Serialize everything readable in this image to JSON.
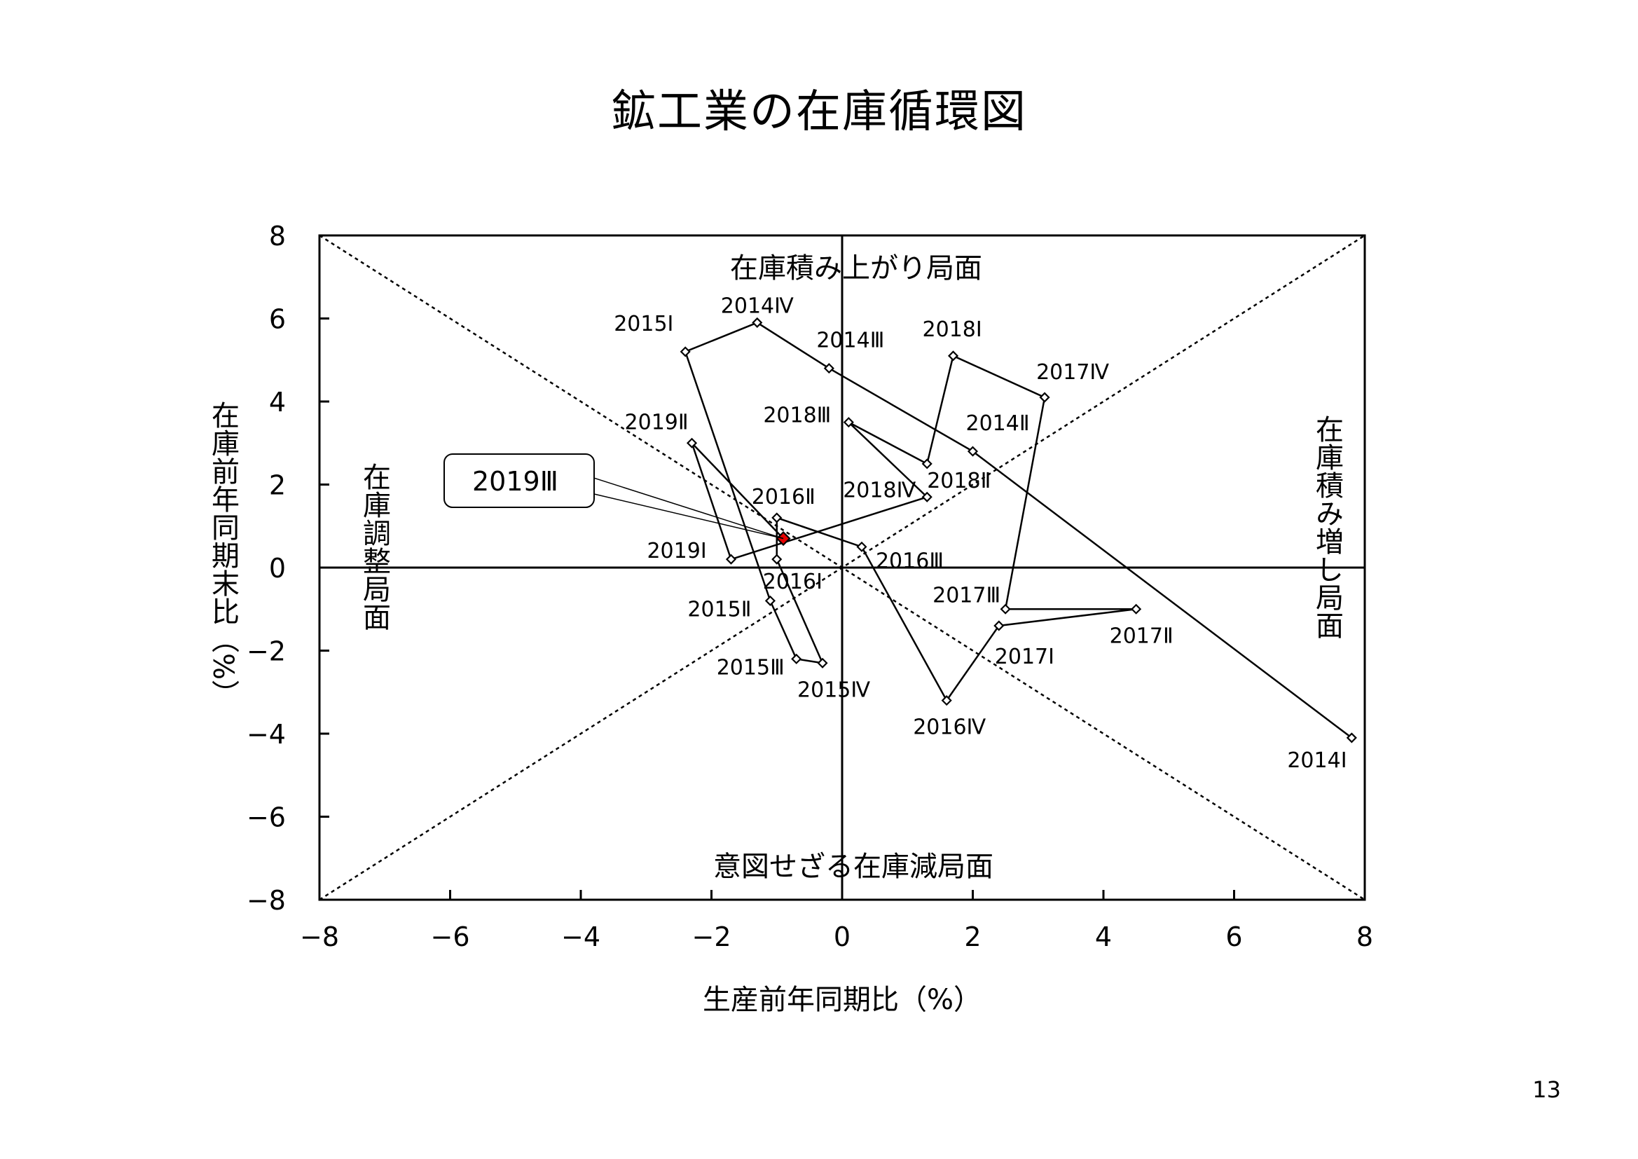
{
  "title": "鉱工業の在庫循環図",
  "page_number": "13",
  "chart_data": {
    "type": "scatter",
    "title": "鉱工業の在庫循環図",
    "xlabel": "生産前年同期比（%）",
    "ylabel": "在庫前年同期末比（%）",
    "xlim": [
      -8,
      8
    ],
    "ylim": [
      -8,
      8
    ],
    "x_ticks": [
      "−8",
      "−6",
      "−4",
      "−2",
      "0",
      "2",
      "4",
      "6",
      "8"
    ],
    "y_ticks": [
      "8",
      "6",
      "4",
      "2",
      "0",
      "−2",
      "−4",
      "−6",
      "−8"
    ],
    "grid": false,
    "reference_lines": [
      "y = x",
      "y = -x",
      "x = 0",
      "y = 0"
    ],
    "quadrant_labels": {
      "top": "在庫積み上がり局面",
      "bottom": "意図せざる在庫減局面",
      "left": "在庫調整局面",
      "right": "在庫積み増し局面"
    },
    "highlight": {
      "label": "2019Ⅲ",
      "x": -0.9,
      "y": 0.7,
      "color": "#e60000"
    },
    "series": [
      {
        "points": [
          {
            "label": "2014Ⅰ",
            "x": 7.8,
            "y": -4.1
          },
          {
            "label": "2014Ⅱ",
            "x": 2.0,
            "y": 2.8
          },
          {
            "label": "2014Ⅲ",
            "x": -0.2,
            "y": 4.8
          },
          {
            "label": "2014Ⅳ",
            "x": -1.3,
            "y": 5.9
          },
          {
            "label": "2015Ⅰ",
            "x": -2.4,
            "y": 5.2
          },
          {
            "label": "2015Ⅱ",
            "x": -1.1,
            "y": -0.8
          },
          {
            "label": "2015Ⅲ",
            "x": -0.7,
            "y": -2.2
          },
          {
            "label": "2015Ⅳ",
            "x": -0.3,
            "y": -2.3
          },
          {
            "label": "2016Ⅰ",
            "x": -1.0,
            "y": 0.2
          },
          {
            "label": "2016Ⅱ",
            "x": -1.0,
            "y": 1.2
          },
          {
            "label": "2016Ⅲ",
            "x": 0.3,
            "y": 0.5
          },
          {
            "label": "2016Ⅳ",
            "x": 1.6,
            "y": -3.2
          },
          {
            "label": "2017Ⅰ",
            "x": 2.4,
            "y": -1.4
          },
          {
            "label": "2017Ⅱ",
            "x": 4.5,
            "y": -1.0
          },
          {
            "label": "2017Ⅲ",
            "x": 2.5,
            "y": -1.0
          },
          {
            "label": "2017Ⅳ",
            "x": 3.1,
            "y": 4.1
          },
          {
            "label": "2018Ⅰ",
            "x": 1.7,
            "y": 5.1
          },
          {
            "label": "2018Ⅱ",
            "x": 1.3,
            "y": 2.5
          },
          {
            "label": "2018Ⅲ",
            "x": 0.1,
            "y": 3.5
          },
          {
            "label": "2018Ⅳ",
            "x": 1.3,
            "y": 1.7
          },
          {
            "label": "2019Ⅰ",
            "x": -1.7,
            "y": 0.2
          },
          {
            "label": "2019Ⅱ",
            "x": -2.3,
            "y": 3.0
          },
          {
            "label": "2019Ⅲ",
            "x": -0.9,
            "y": 0.7
          }
        ]
      }
    ]
  }
}
